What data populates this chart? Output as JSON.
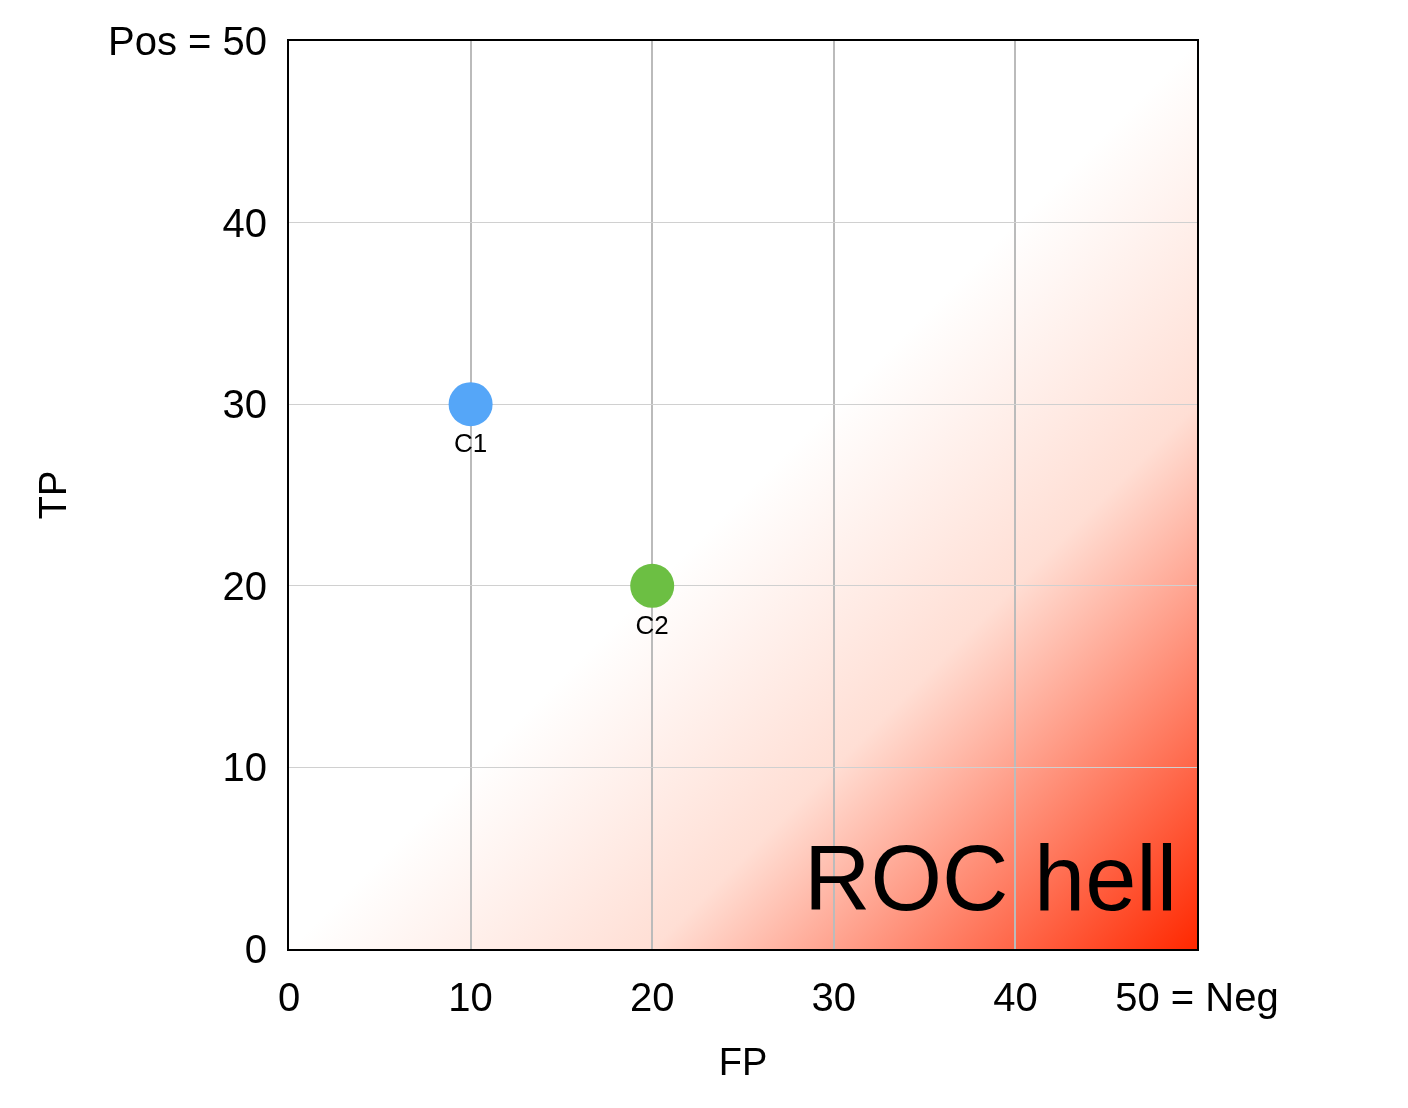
{
  "chart_data": {
    "type": "scatter",
    "xlabel": "FP",
    "ylabel": "TP",
    "series": [
      {
        "name": "C1",
        "color": "#55a6f8",
        "x": [
          10
        ],
        "values": [
          30
        ]
      },
      {
        "name": "C2",
        "color": "#6cbf43",
        "x": [
          20
        ],
        "values": [
          20
        ]
      }
    ],
    "xlim": [
      0,
      50
    ],
    "xticks": [
      0,
      10,
      20,
      30,
      40,
      {
        "value": 50,
        "label": "50 = Neg"
      }
    ],
    "ylim": [
      0,
      50
    ],
    "yticks": [
      0,
      10,
      20,
      30,
      40,
      {
        "value": 50,
        "label": "Pos = 50"
      }
    ],
    "annotations": [
      "ROC hell"
    ],
    "grid": true,
    "legend": false,
    "marker": "circle"
  }
}
